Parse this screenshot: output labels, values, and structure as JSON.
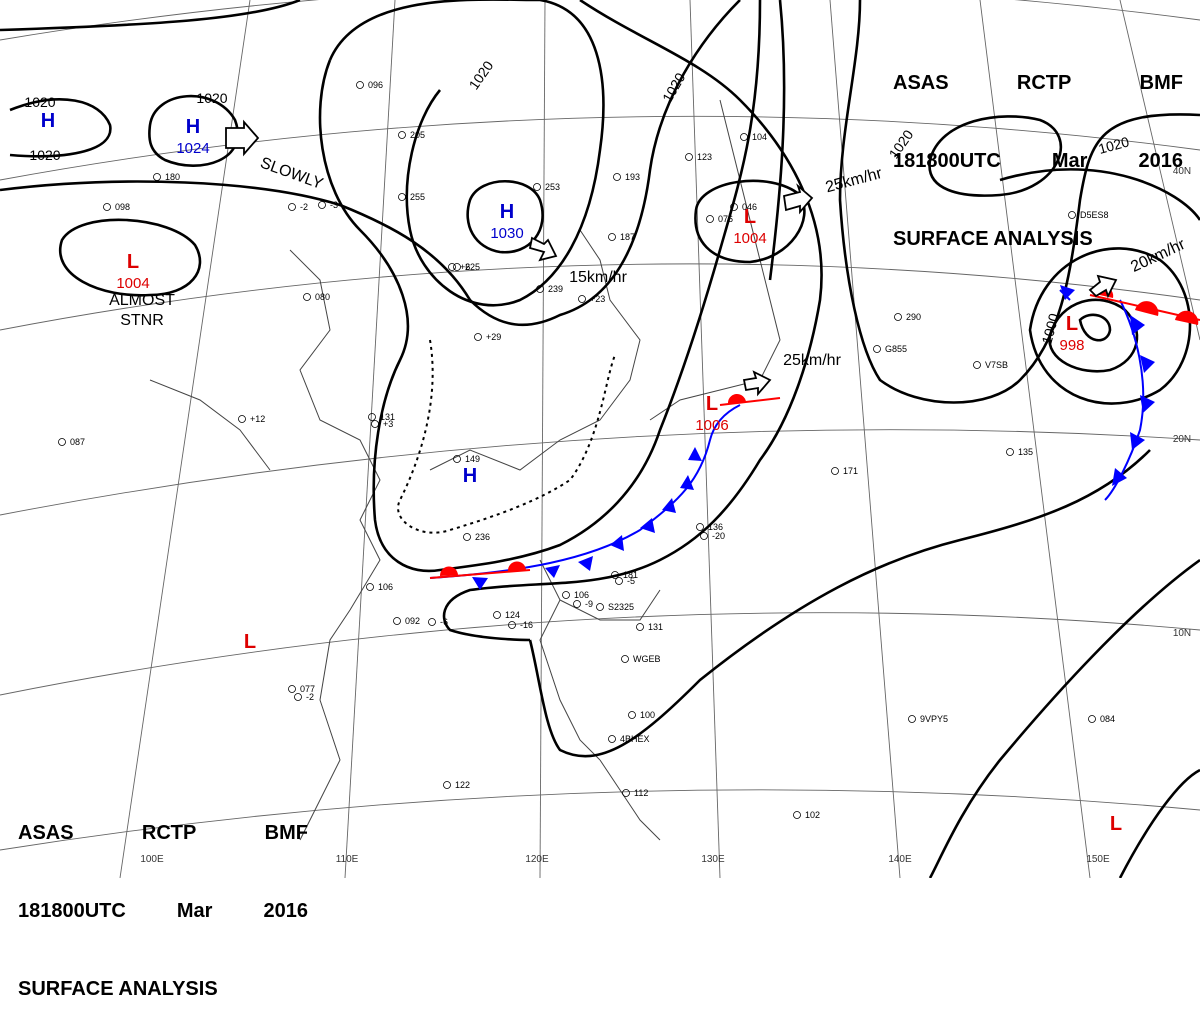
{
  "header": {
    "row1": [
      "ASAS",
      "RCTP",
      "BMF"
    ],
    "row2": [
      "181800UTC",
      "Mar",
      "2016"
    ],
    "row3": "SURFACE ANALYSIS"
  },
  "colors": {
    "high": "#0000cc",
    "low": "#dd0000",
    "cold_front": "#0000ff",
    "warm_front": "#ff0000",
    "isobar": "#000000",
    "grid": "#555555"
  },
  "pressure_centers": [
    {
      "type": "H",
      "value": "1024"
    },
    {
      "type": "H",
      "value": "1030"
    },
    {
      "type": "H",
      "value": ""
    },
    {
      "type": "H",
      "value": ""
    },
    {
      "type": "L",
      "value": "1004"
    },
    {
      "type": "L",
      "value": "1004"
    },
    {
      "type": "L",
      "value": "1006"
    },
    {
      "type": "L",
      "value": "998"
    },
    {
      "type": "L",
      "value": ""
    },
    {
      "type": "L",
      "value": ""
    }
  ],
  "isobar_labels": [
    "1020",
    "1020",
    "1020",
    "1020",
    "1020",
    "1020",
    "1020",
    "1000"
  ],
  "motion_labels": [
    "SLOWLY",
    "15km/hr",
    "25km/hr",
    "25km/hr",
    "20km/hr",
    "ALMOST",
    "STNR"
  ],
  "longitude_labels": [
    "100E",
    "110E",
    "120E",
    "130E",
    "140E",
    "150E"
  ],
  "latitude_labels": [
    "20N",
    "10N",
    "40N"
  ],
  "station_text": [
    "149",
    "131",
    "187",
    "253",
    "255",
    "225",
    "239",
    "236",
    "205",
    "193",
    "123",
    "104",
    "076",
    "046",
    "180",
    "096",
    "106",
    "092",
    "077",
    "124",
    "136",
    "181",
    "106",
    "131",
    "100",
    "122",
    "102",
    "084",
    "135",
    "171",
    "290",
    "112",
    "087",
    "098",
    "080",
    "+12",
    "+3",
    "+29",
    "+23",
    "-16",
    "-20",
    "-5",
    "-9",
    "+6",
    "-2",
    "-3",
    "S2325",
    "WGEB",
    "9VPY5",
    "V7SB",
    "G855",
    "D5ES8",
    "4BHEX",
    "-6",
    "-2"
  ]
}
